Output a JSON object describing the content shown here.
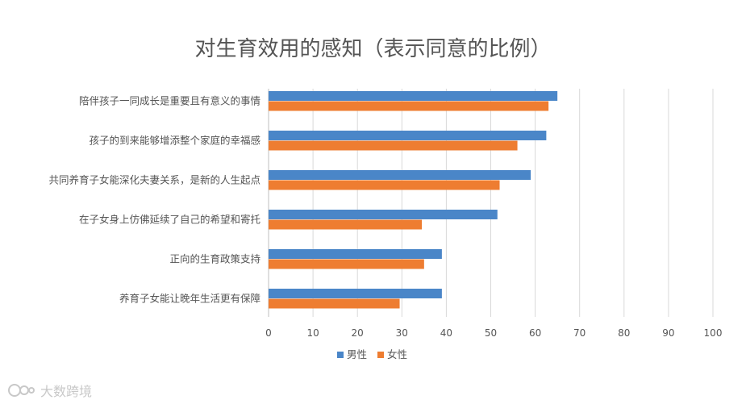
{
  "chart_data": {
    "type": "bar",
    "orientation": "horizontal",
    "title": "对生育效用的感知（表示同意的比例）",
    "categories": [
      "陪伴孩子一同成长是重要且有意义的事情",
      "孩子的到来能够增添整个家庭的幸福感",
      "共同养育子女能深化夫妻关系，是新的人生起点",
      "在子女身上仿佛延续了自己的希望和寄托",
      "正向的生育政策支持",
      "养育子女能让晚年生活更有保障"
    ],
    "series": [
      {
        "name": "男性",
        "color": "#4a86c8",
        "values": [
          65,
          62.5,
          59,
          51.5,
          39,
          39
        ]
      },
      {
        "name": "女性",
        "color": "#ee7d31",
        "values": [
          63,
          56,
          52,
          34.5,
          35,
          29.5
        ]
      }
    ],
    "xlim": [
      0,
      100
    ],
    "xticks": [
      0,
      10,
      20,
      30,
      40,
      50,
      60,
      70,
      80,
      90,
      100
    ],
    "grid": "vertical",
    "legend_position": "bottom"
  },
  "watermark": {
    "text": "大数跨境"
  }
}
